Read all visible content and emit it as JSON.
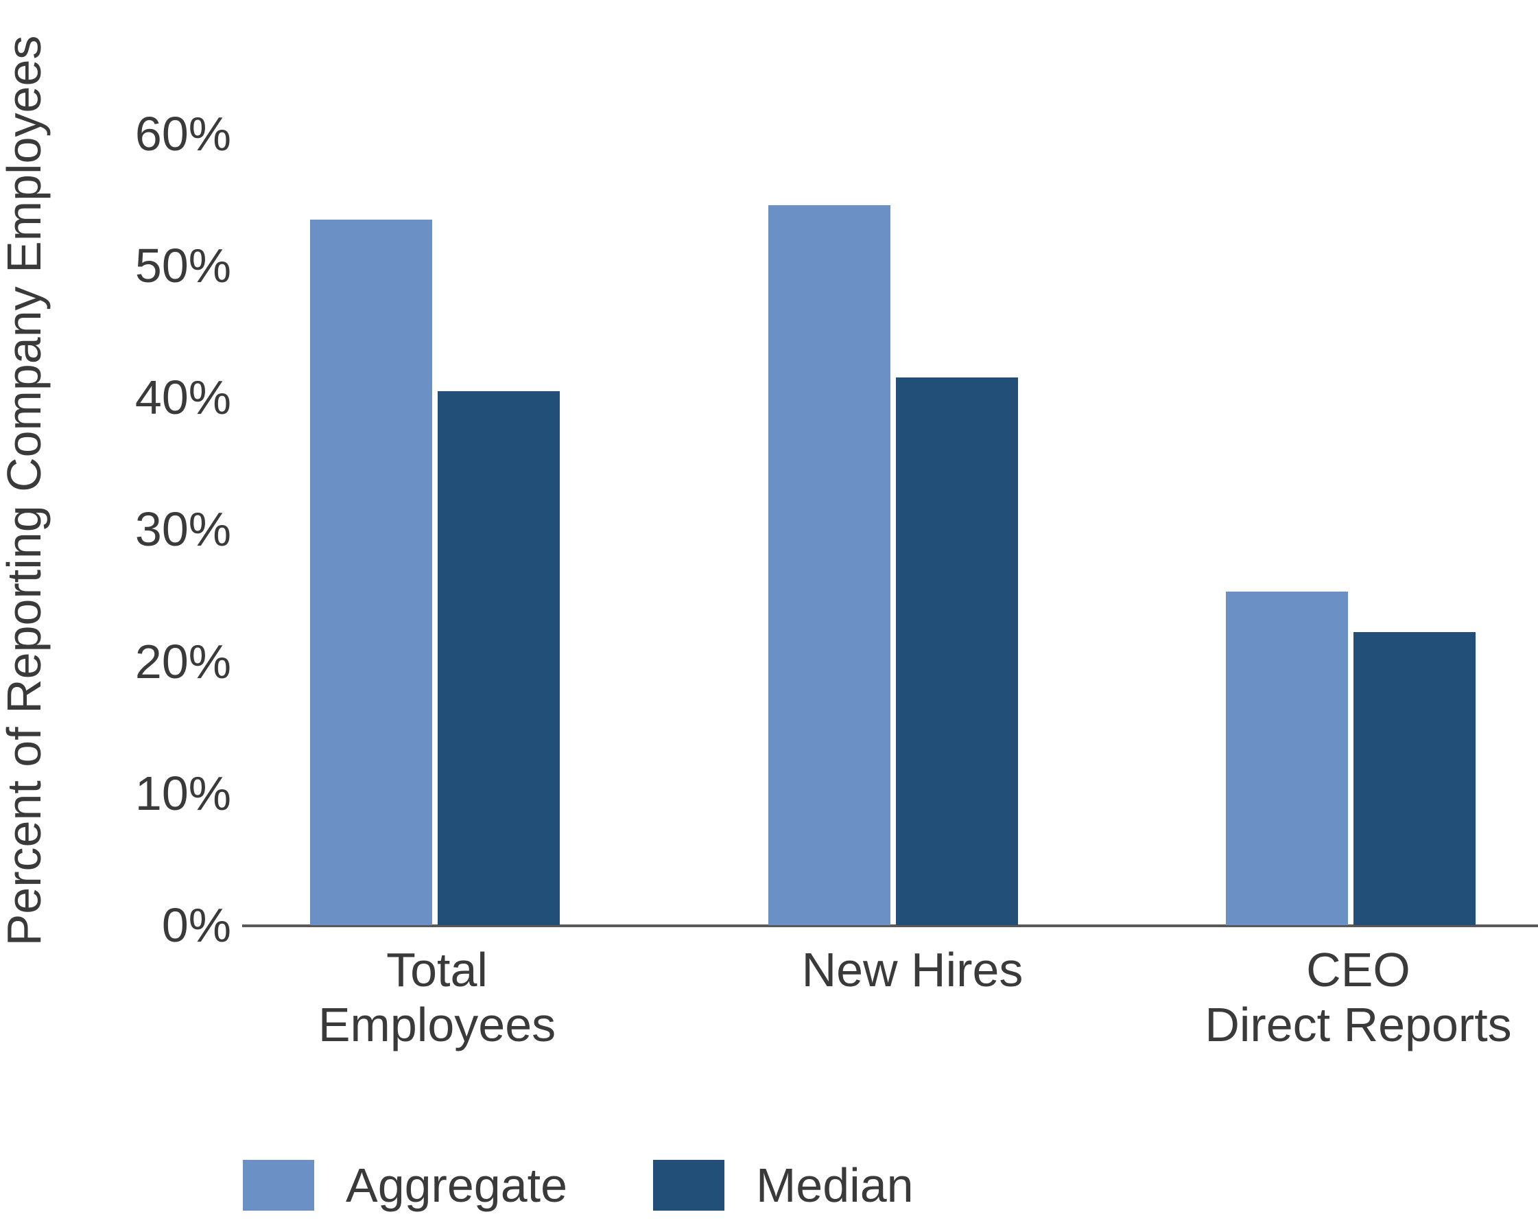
{
  "chart_data": {
    "type": "bar",
    "title": "",
    "xlabel": "",
    "ylabel": "Percent of Reporting Company Employees",
    "categories": [
      "Total Employees",
      "New Hires",
      "CEO Direct Reports"
    ],
    "category_label_lines": [
      [
        "Total",
        "Employees"
      ],
      [
        "New Hires"
      ],
      [
        "CEO",
        "Direct Reports"
      ]
    ],
    "series": [
      {
        "name": "Aggregate",
        "color": "#6B90C6",
        "values": [
          53.5,
          54.6,
          25.3
        ]
      },
      {
        "name": "Median",
        "color": "#224F78",
        "values": [
          40.5,
          41.5,
          22.2
        ]
      }
    ],
    "y_ticks": [
      {
        "value": 0,
        "label": "0%"
      },
      {
        "value": 10,
        "label": "10%"
      },
      {
        "value": 20,
        "label": "20%"
      },
      {
        "value": 30,
        "label": "30%"
      },
      {
        "value": 40,
        "label": "40%"
      },
      {
        "value": 50,
        "label": "50%"
      },
      {
        "value": 60,
        "label": "60%"
      }
    ],
    "ylim": [
      0,
      65
    ],
    "grid": false,
    "legend_position": "bottom",
    "axis_color": "#595959",
    "text_color": "#3A3A3A",
    "background_color": "#FFFFFF"
  }
}
